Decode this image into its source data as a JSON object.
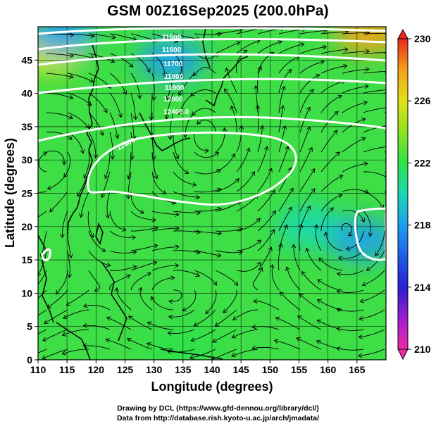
{
  "title": "GSM 00Z16Sep2025 (200.0hPa)",
  "credits": {
    "drawing": "Drawing by DCL (https://www.gfd-dennou.org/library/dcl/)",
    "data": "Data from http://database.rish.kyoto-u.ac.jp/arch/jmadata/"
  },
  "chart_data": {
    "type": "heatmap",
    "xlabel": "Longitude (degrees)",
    "ylabel": "Latitude  (degrees)",
    "xlim": [
      110,
      170
    ],
    "ylim": [
      0,
      50
    ],
    "x_ticks": [
      110,
      115,
      120,
      125,
      130,
      135,
      140,
      145,
      150,
      155,
      160,
      165
    ],
    "y_ticks": [
      0,
      5,
      10,
      15,
      20,
      25,
      30,
      35,
      40,
      45
    ],
    "grid": true,
    "colorbar": {
      "min": 210,
      "max": 230,
      "tick_values": [
        210,
        214,
        218,
        222,
        226,
        230
      ],
      "placement": "right"
    },
    "contour_labels": [
      "11500",
      "11600",
      "11700",
      "11800",
      "11900",
      "12000",
      "12400.0",
      "12400"
    ],
    "temperature_features": [
      {
        "feature": "warm",
        "lon": 167,
        "lat": 49,
        "value": 228
      },
      {
        "feature": "warm",
        "lon": 112,
        "lat": 46,
        "value": 226
      },
      {
        "feature": "cold",
        "lon": 133,
        "lat": 45,
        "value": 217
      },
      {
        "feature": "cold",
        "lon": 114,
        "lat": 49,
        "value": 217
      },
      {
        "feature": "cold",
        "lon": 157,
        "lat": 20,
        "value": 219
      },
      {
        "feature": "cold",
        "lon": 166,
        "lat": 18,
        "value": 218
      },
      {
        "feature": "cold",
        "lon": 135,
        "lat": 2,
        "value": 221
      }
    ],
    "anticyclone_center": {
      "lon": 139,
      "lat": 32
    }
  }
}
